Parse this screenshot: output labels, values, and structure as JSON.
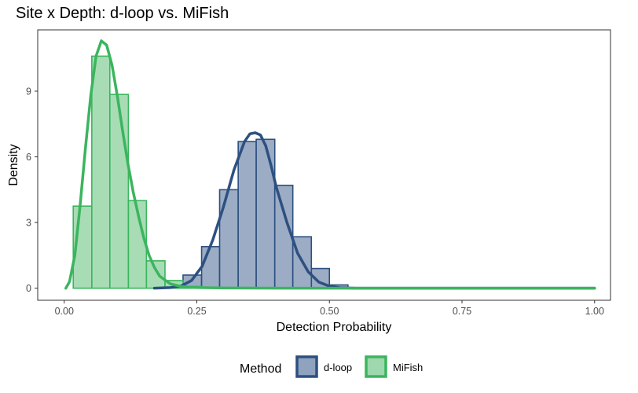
{
  "chart_data": {
    "type": "histogram-density",
    "title": "Site x Depth: d-loop vs. MiFish",
    "xlabel": "Detection Probability",
    "ylabel": "Density",
    "xlim": [
      -0.05,
      1.03
    ],
    "ylim": [
      -0.55,
      11.8
    ],
    "x_ticks": [
      0,
      0.25,
      0.5,
      0.75,
      1
    ],
    "x_tick_labels": [
      "0.00",
      "0.25",
      "0.50",
      "0.75",
      "1.00"
    ],
    "y_ticks": [
      0,
      3,
      6,
      9
    ],
    "y_tick_labels": [
      "0",
      "3",
      "6",
      "9"
    ],
    "grid": false,
    "legend": {
      "title": "Method",
      "position": "bottom",
      "entries": [
        {
          "label": "d-loop",
          "color": "#2d5080",
          "fill": "#90a3be"
        },
        {
          "label": "MiFish",
          "color": "#3bb55e",
          "fill": "#9ed8ad"
        }
      ]
    },
    "series": [
      {
        "name": "d-loop",
        "line_color": "#2d5080",
        "fill_color": "#90a3be",
        "bin_width": 0.0345,
        "bins": [
          {
            "x0": 0.224,
            "x1": 0.259,
            "density": 0.6
          },
          {
            "x0": 0.259,
            "x1": 0.293,
            "density": 1.9
          },
          {
            "x0": 0.293,
            "x1": 0.328,
            "density": 4.5
          },
          {
            "x0": 0.328,
            "x1": 0.362,
            "density": 6.7
          },
          {
            "x0": 0.362,
            "x1": 0.397,
            "density": 6.8
          },
          {
            "x0": 0.397,
            "x1": 0.431,
            "density": 4.7
          },
          {
            "x0": 0.431,
            "x1": 0.466,
            "density": 2.35
          },
          {
            "x0": 0.466,
            "x1": 0.5,
            "density": 0.9
          },
          {
            "x0": 0.5,
            "x1": 0.535,
            "density": 0.15
          }
        ],
        "density_curve": {
          "x": [
            0.17,
            0.2,
            0.22,
            0.24,
            0.26,
            0.28,
            0.3,
            0.32,
            0.34,
            0.35,
            0.36,
            0.37,
            0.38,
            0.39,
            0.4,
            0.42,
            0.44,
            0.46,
            0.48,
            0.5,
            0.52,
            0.55,
            0.6,
            0.7,
            0.8,
            0.9,
            1.0
          ],
          "y": [
            0.0,
            0.03,
            0.1,
            0.35,
            1.0,
            2.2,
            3.7,
            5.4,
            6.7,
            7.05,
            7.1,
            7.0,
            6.5,
            5.6,
            4.6,
            3.0,
            1.6,
            0.75,
            0.28,
            0.09,
            0.02,
            0.0,
            0.0,
            0.0,
            0.0,
            0.0,
            0.0
          ]
        }
      },
      {
        "name": "MiFish",
        "line_color": "#3bb55e",
        "fill_color": "#9ed8ad",
        "bin_width": 0.0345,
        "bins": [
          {
            "x0": 0.017,
            "x1": 0.052,
            "density": 3.75
          },
          {
            "x0": 0.052,
            "x1": 0.086,
            "density": 10.6
          },
          {
            "x0": 0.086,
            "x1": 0.121,
            "density": 8.85
          },
          {
            "x0": 0.121,
            "x1": 0.155,
            "density": 4.0
          },
          {
            "x0": 0.155,
            "x1": 0.19,
            "density": 1.25
          },
          {
            "x0": 0.19,
            "x1": 0.224,
            "density": 0.35
          },
          {
            "x0": 0.224,
            "x1": 0.259,
            "density": 0.08
          }
        ],
        "density_curve": {
          "x": [
            0.003,
            0.01,
            0.02,
            0.03,
            0.04,
            0.05,
            0.06,
            0.07,
            0.08,
            0.09,
            0.1,
            0.11,
            0.12,
            0.13,
            0.14,
            0.15,
            0.16,
            0.17,
            0.18,
            0.2,
            0.22,
            0.25,
            0.3,
            0.4,
            0.5,
            0.6,
            0.8,
            1.0
          ],
          "y": [
            0.0,
            0.3,
            1.5,
            3.8,
            6.4,
            8.8,
            10.6,
            11.3,
            11.1,
            10.2,
            8.8,
            7.2,
            5.7,
            4.4,
            3.3,
            2.3,
            1.5,
            0.95,
            0.55,
            0.2,
            0.08,
            0.03,
            0.01,
            0.0,
            0.0,
            0.0,
            0.0,
            0.0
          ]
        }
      }
    ]
  }
}
